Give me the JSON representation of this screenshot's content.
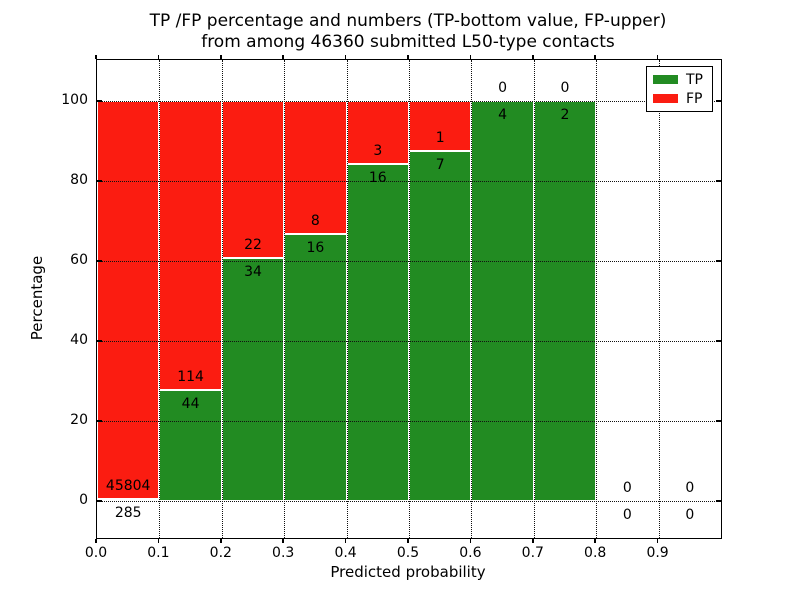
{
  "title": {
    "line1": "TP /FP percentage and numbers (TP-bottom value, FP-upper)",
    "line2": "from among 46360 submitted L50-type contacts"
  },
  "axes": {
    "xlabel": "Predicted probability",
    "ylabel": "Percentage",
    "y_ticks": [
      {
        "label": "0",
        "value": 0
      },
      {
        "label": "20",
        "value": 20
      },
      {
        "label": "40",
        "value": 40
      },
      {
        "label": "60",
        "value": 60
      },
      {
        "label": "80",
        "value": 80
      },
      {
        "label": "100",
        "value": 100
      }
    ],
    "x_ticks": [
      {
        "label": "0.0",
        "value": 0.0
      },
      {
        "label": "0.1",
        "value": 0.1
      },
      {
        "label": "0.2",
        "value": 0.2
      },
      {
        "label": "0.3",
        "value": 0.3
      },
      {
        "label": "0.4",
        "value": 0.4
      },
      {
        "label": "0.5",
        "value": 0.5
      },
      {
        "label": "0.6",
        "value": 0.6
      },
      {
        "label": "0.7",
        "value": 0.7
      },
      {
        "label": "0.8",
        "value": 0.8
      },
      {
        "label": "0.9",
        "value": 0.9
      }
    ]
  },
  "legend": {
    "items": [
      {
        "label": "TP",
        "series": "tp"
      },
      {
        "label": "FP",
        "series": "fp"
      }
    ]
  },
  "chart_data": {
    "type": "bar",
    "subtype": "stacked-percentage",
    "title": "TP /FP percentage and numbers (TP-bottom value, FP-upper)\nfrom among 46360 submitted L50-type contacts",
    "xlabel": "Predicted probability",
    "ylabel": "Percentage",
    "total_submitted": 46360,
    "bin_width": 0.1,
    "xlim": [
      0.0,
      1.0
    ],
    "ylim": [
      -9,
      110
    ],
    "grid": "dotted",
    "legend_position": "upper right",
    "categories": [
      "0.0-0.1",
      "0.1-0.2",
      "0.2-0.3",
      "0.3-0.4",
      "0.4-0.5",
      "0.5-0.6",
      "0.6-0.7",
      "0.7-0.8",
      "0.8-0.9",
      "0.9-1.0"
    ],
    "series": [
      {
        "name": "TP",
        "counts": [
          285,
          44,
          34,
          16,
          16,
          7,
          4,
          2,
          0,
          0
        ]
      },
      {
        "name": "FP",
        "counts": [
          45804,
          114,
          22,
          8,
          3,
          1,
          0,
          0,
          0,
          0
        ]
      }
    ],
    "tp_percentages": [
      0.62,
      27.85,
      60.71,
      66.67,
      84.21,
      87.5,
      100,
      100,
      null,
      null
    ],
    "colors": {
      "tp": "#228b22",
      "fp": "#fb1c11"
    }
  }
}
